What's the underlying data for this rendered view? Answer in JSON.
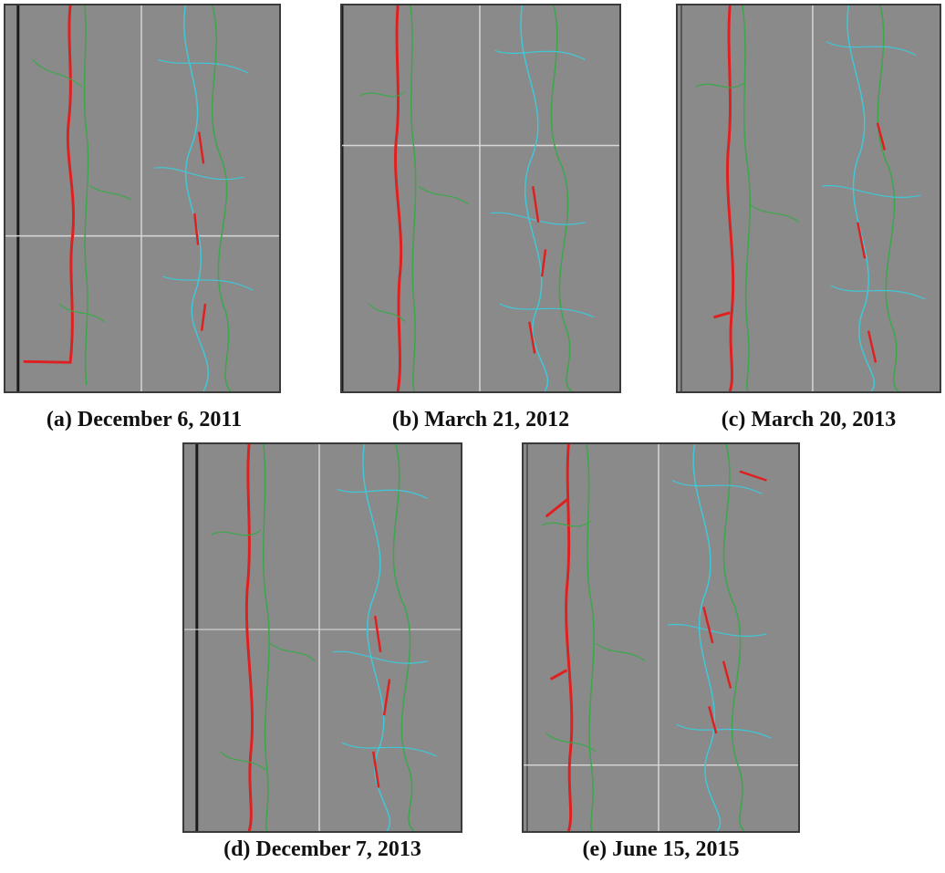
{
  "panels": [
    {
      "caption": "(a) December 6, 2011"
    },
    {
      "caption": "(b) March 21, 2012"
    },
    {
      "caption": "(c) March 20, 2013"
    },
    {
      "caption": "(d) December 7, 2013"
    },
    {
      "caption": "(e) June 15, 2015"
    }
  ],
  "colors": {
    "pavement": "#8a8a8a",
    "crack_severe": "#e02020",
    "crack_moderate": "#3aa84a",
    "crack_minor": "#3ec8d8",
    "lane_edge": "#1a1a1a",
    "joint_line": "#d8d8d8"
  }
}
